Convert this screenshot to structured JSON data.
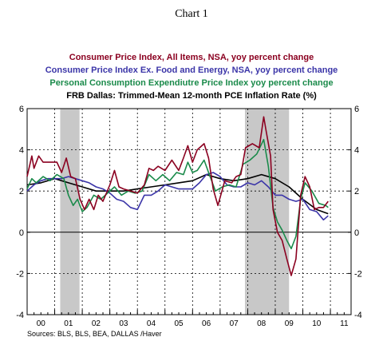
{
  "title": "Chart 1",
  "source": "Sources:  BLS, BLS, BEA, DALLAS /Haver",
  "chart_data": {
    "type": "line",
    "ylim": [
      -4,
      6
    ],
    "yticks": [
      -4,
      -2,
      0,
      2,
      4,
      6
    ],
    "xlim": [
      2000.0,
      2011.75
    ],
    "xtick_labels": [
      "00",
      "01",
      "02",
      "03",
      "04",
      "05",
      "06",
      "07",
      "08",
      "09",
      "10",
      "11"
    ],
    "grid": "dashed vertical lines at year boundaries and horizontal lines at ±2, 4",
    "shaded_periods": [
      [
        2001.2,
        2001.9
      ],
      [
        2007.9,
        2009.5
      ]
    ],
    "legend_position": "top",
    "series": [
      {
        "name": "Consumer Price Index, All Items, NSA, yoy percent change",
        "color": "#8b0020",
        "x": [
          2000.0,
          2000.17,
          2000.25,
          2000.42,
          2000.58,
          2000.75,
          2000.92,
          2001.08,
          2001.25,
          2001.42,
          2001.58,
          2001.75,
          2001.92,
          2002.08,
          2002.25,
          2002.42,
          2002.58,
          2002.75,
          2003.0,
          2003.17,
          2003.33,
          2003.5,
          2003.75,
          2004.0,
          2004.25,
          2004.42,
          2004.58,
          2004.75,
          2005.0,
          2005.25,
          2005.5,
          2005.67,
          2005.83,
          2006.0,
          2006.17,
          2006.42,
          2006.58,
          2006.75,
          2006.92,
          2007.17,
          2007.42,
          2007.58,
          2007.75,
          2007.92,
          2008.17,
          2008.42,
          2008.58,
          2008.67,
          2008.83,
          2008.92,
          2009.08,
          2009.25,
          2009.42,
          2009.58,
          2009.75,
          2009.92,
          2010.08,
          2010.25,
          2010.42,
          2010.58,
          2010.75,
          2010.92
        ],
        "values": [
          2.7,
          3.7,
          3.1,
          3.7,
          3.4,
          3.4,
          3.4,
          3.4,
          2.9,
          3.6,
          2.7,
          2.6,
          1.6,
          1.1,
          1.6,
          1.1,
          1.8,
          1.5,
          2.3,
          3.0,
          2.2,
          2.1,
          2.0,
          1.9,
          2.3,
          3.1,
          3.0,
          3.2,
          3.0,
          3.5,
          3.0,
          3.6,
          4.2,
          3.4,
          4.0,
          4.3,
          3.6,
          2.1,
          1.3,
          2.5,
          2.4,
          2.7,
          2.8,
          4.1,
          4.3,
          4.1,
          5.6,
          4.9,
          3.7,
          1.1,
          0.0,
          -0.4,
          -1.3,
          -2.1,
          -1.3,
          1.8,
          2.7,
          2.2,
          1.1,
          1.2,
          1.2,
          1.5
        ]
      },
      {
        "name": "Consumer Price Index Ex. Food and Energy, NSA, yoy percent change",
        "color": "#3b35a8",
        "x": [
          2000.0,
          2000.25,
          2000.5,
          2000.75,
          2001.0,
          2001.25,
          2001.5,
          2001.75,
          2002.0,
          2002.25,
          2002.5,
          2002.75,
          2003.0,
          2003.25,
          2003.5,
          2003.75,
          2004.0,
          2004.25,
          2004.5,
          2004.75,
          2005.0,
          2005.25,
          2005.5,
          2005.75,
          2006.0,
          2006.25,
          2006.5,
          2006.75,
          2007.0,
          2007.25,
          2007.5,
          2007.75,
          2008.0,
          2008.25,
          2008.5,
          2008.75,
          2009.0,
          2009.25,
          2009.5,
          2009.75,
          2010.0,
          2010.25,
          2010.5,
          2010.75,
          2010.92
        ],
        "values": [
          2.0,
          2.3,
          2.5,
          2.6,
          2.6,
          2.6,
          2.7,
          2.6,
          2.5,
          2.4,
          2.2,
          2.1,
          1.9,
          1.6,
          1.5,
          1.2,
          1.1,
          1.8,
          1.8,
          2.0,
          2.3,
          2.2,
          2.1,
          2.1,
          2.1,
          2.4,
          2.8,
          2.9,
          2.7,
          2.3,
          2.2,
          2.2,
          2.4,
          2.3,
          2.5,
          2.2,
          1.8,
          1.8,
          1.6,
          1.5,
          1.6,
          1.1,
          1.0,
          0.6,
          0.8
        ]
      },
      {
        "name": "Personal Consumption Expendiutre Price Index  yoy  percent change",
        "color": "#1a8a4a",
        "x": [
          2000.0,
          2000.17,
          2000.33,
          2000.58,
          2000.83,
          2001.08,
          2001.33,
          2001.5,
          2001.67,
          2001.83,
          2002.0,
          2002.17,
          2002.42,
          2002.67,
          2002.92,
          2003.17,
          2003.42,
          2003.67,
          2003.92,
          2004.17,
          2004.42,
          2004.67,
          2004.92,
          2005.17,
          2005.42,
          2005.67,
          2005.83,
          2006.0,
          2006.17,
          2006.42,
          2006.58,
          2006.83,
          2007.08,
          2007.33,
          2007.58,
          2007.83,
          2008.08,
          2008.33,
          2008.58,
          2008.75,
          2008.92,
          2009.08,
          2009.25,
          2009.42,
          2009.58,
          2009.75,
          2009.92,
          2010.08,
          2010.33,
          2010.58,
          2010.83,
          2010.92
        ],
        "values": [
          2.1,
          2.6,
          2.4,
          2.7,
          2.5,
          2.8,
          2.6,
          1.8,
          1.3,
          1.6,
          1.0,
          1.2,
          1.8,
          1.6,
          1.9,
          2.2,
          1.8,
          2.0,
          1.9,
          2.0,
          2.8,
          2.5,
          2.8,
          2.5,
          2.9,
          2.8,
          3.4,
          2.9,
          3.0,
          3.5,
          2.9,
          2.0,
          2.2,
          2.3,
          2.2,
          3.3,
          3.5,
          3.8,
          4.5,
          3.2,
          1.2,
          0.5,
          0.1,
          -0.4,
          -0.8,
          -0.2,
          1.6,
          2.4,
          2.0,
          1.4,
          1.3,
          1.2
        ]
      },
      {
        "name": "FRB Dallas: Trimmed-Mean 12-month PCE Inflation Rate (%)",
        "color": "#000000",
        "x": [
          2000.0,
          2000.5,
          2001.0,
          2001.5,
          2002.0,
          2002.5,
          2003.0,
          2003.5,
          2004.0,
          2004.5,
          2005.0,
          2005.5,
          2006.0,
          2006.5,
          2007.0,
          2007.5,
          2008.0,
          2008.5,
          2009.0,
          2009.5,
          2010.0,
          2010.5,
          2010.92
        ],
        "values": [
          2.3,
          2.4,
          2.6,
          2.4,
          2.2,
          2.0,
          2.0,
          2.0,
          2.1,
          2.2,
          2.3,
          2.4,
          2.5,
          2.8,
          2.6,
          2.5,
          2.6,
          2.8,
          2.6,
          2.2,
          1.6,
          1.1,
          0.9
        ]
      }
    ]
  }
}
